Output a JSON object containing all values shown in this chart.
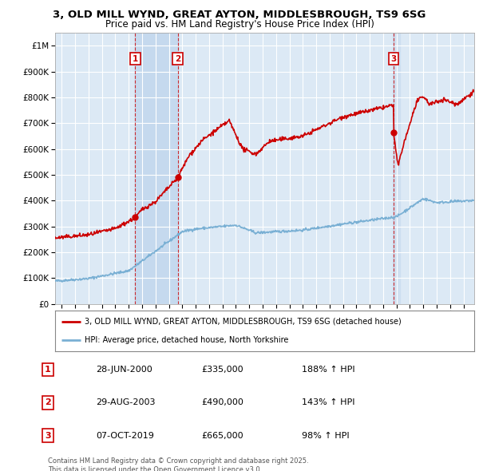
{
  "title_line1": "3, OLD MILL WYND, GREAT AYTON, MIDDLESBROUGH, TS9 6SG",
  "title_line2": "Price paid vs. HM Land Registry's House Price Index (HPI)",
  "background_color": "#ffffff",
  "plot_bg_color": "#dce9f5",
  "grid_color": "#ffffff",
  "red_line_color": "#cc0000",
  "blue_line_color": "#7ab0d4",
  "shade_color": "#c5d9ee",
  "sale_points": [
    {
      "date_year": 2000.49,
      "price": 335000,
      "label": "1"
    },
    {
      "date_year": 2003.66,
      "price": 490000,
      "label": "2"
    },
    {
      "date_year": 2019.77,
      "price": 665000,
      "label": "3"
    }
  ],
  "vline_dates": [
    2000.49,
    2003.66,
    2019.77
  ],
  "table_data": [
    [
      "1",
      "28-JUN-2000",
      "£335,000",
      "188% ↑ HPI"
    ],
    [
      "2",
      "29-AUG-2003",
      "£490,000",
      "143% ↑ HPI"
    ],
    [
      "3",
      "07-OCT-2019",
      "£665,000",
      "98% ↑ HPI"
    ]
  ],
  "legend_line1": "3, OLD MILL WYND, GREAT AYTON, MIDDLESBROUGH, TS9 6SG (detached house)",
  "legend_line2": "HPI: Average price, detached house, North Yorkshire",
  "footnote": "Contains HM Land Registry data © Crown copyright and database right 2025.\nThis data is licensed under the Open Government Licence v3.0.",
  "ylim": [
    0,
    1050000
  ],
  "yticks": [
    0,
    100000,
    200000,
    300000,
    400000,
    500000,
    600000,
    700000,
    800000,
    900000,
    1000000
  ],
  "xlim_start": 1994.5,
  "xlim_end": 2025.8,
  "xticks": [
    1995,
    1996,
    1997,
    1998,
    1999,
    2000,
    2001,
    2002,
    2003,
    2004,
    2005,
    2006,
    2007,
    2008,
    2009,
    2010,
    2011,
    2012,
    2013,
    2014,
    2015,
    2016,
    2017,
    2018,
    2019,
    2020,
    2021,
    2022,
    2023,
    2024,
    2025
  ]
}
